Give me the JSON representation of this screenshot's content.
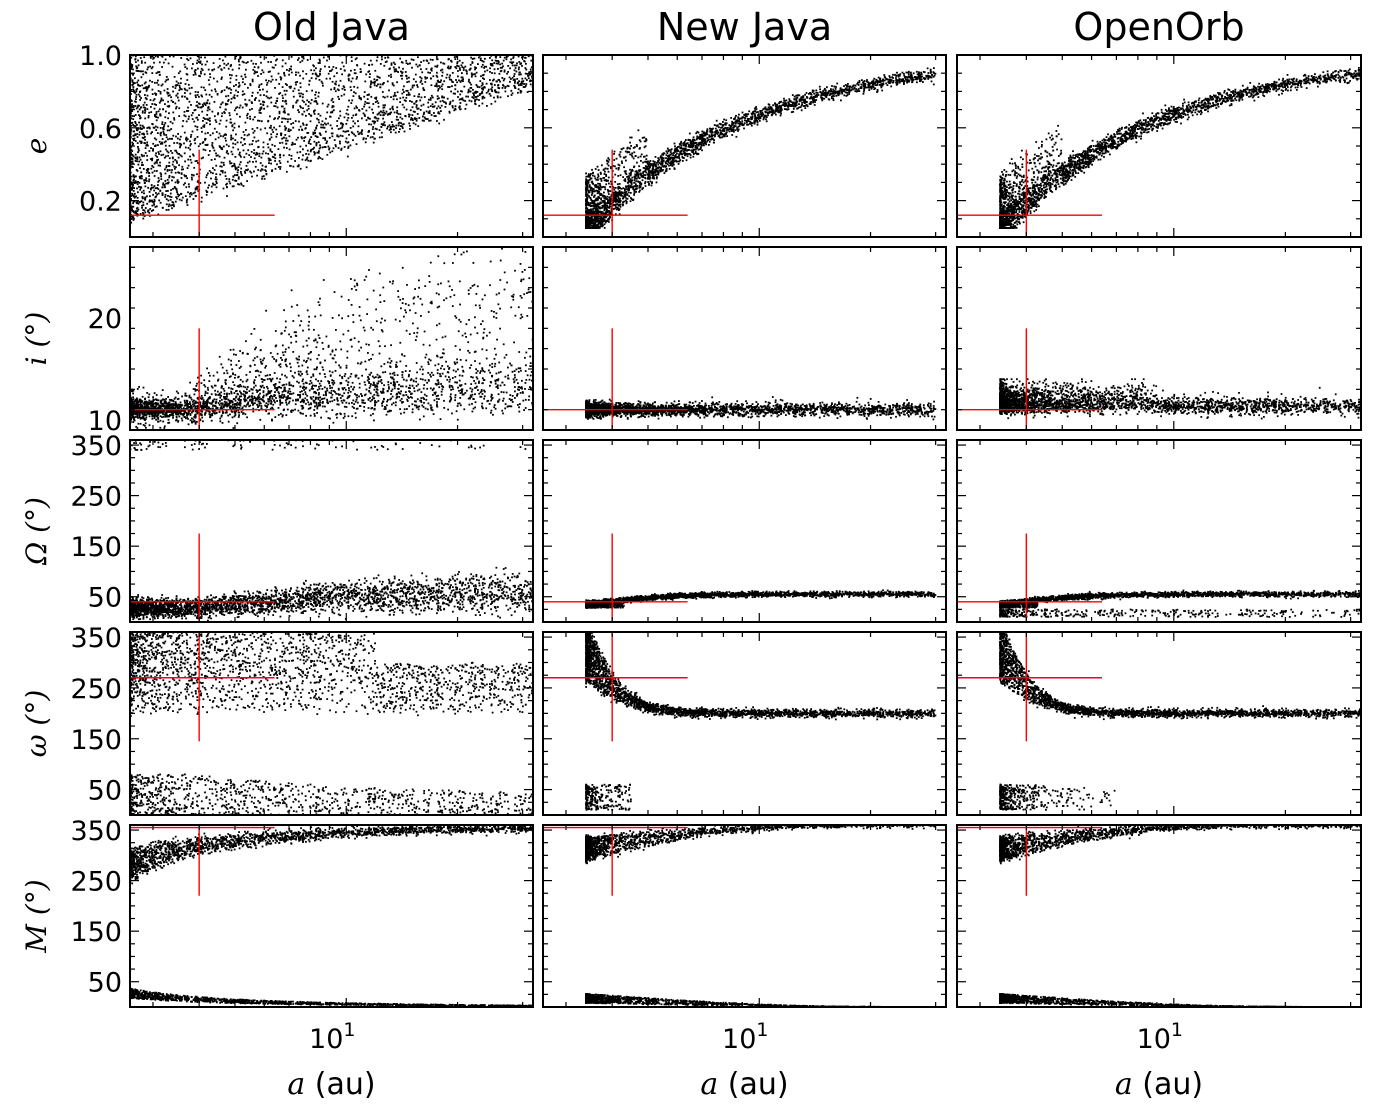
{
  "chart_data": {
    "type": "scatter",
    "layout": "5 rows x 3 columns grid; shared x axis per column, shared y axis per row",
    "columns": [
      "Old Java",
      "New Java",
      "OpenOrb"
    ],
    "x": {
      "label_symbol": "a",
      "label_unit": "(au)",
      "scale": "log",
      "tick_labels": [
        "10",
        "1"
      ],
      "range": [
        2.6,
        32
      ]
    },
    "rows": [
      {
        "key": "e",
        "label": "e",
        "unit": "",
        "range": [
          0,
          1.0
        ],
        "tick_labels": [
          "0.2",
          "0.6",
          "1.0"
        ],
        "tick_values": [
          0.2,
          0.6,
          1.0
        ]
      },
      {
        "key": "i",
        "label": "i",
        "unit": "(°)",
        "range": [
          9,
          27
        ],
        "tick_labels": [
          "10",
          "20"
        ],
        "tick_values": [
          10,
          20
        ]
      },
      {
        "key": "Omega",
        "label": "Ω",
        "unit": "(°)",
        "range": [
          0,
          360
        ],
        "tick_labels": [
          "50",
          "150",
          "250",
          "350"
        ],
        "tick_values": [
          50,
          150,
          250,
          350
        ]
      },
      {
        "key": "omega",
        "label": "ω",
        "unit": "(°)",
        "range": [
          0,
          360
        ],
        "tick_labels": [
          "50",
          "150",
          "250",
          "350"
        ],
        "tick_values": [
          50,
          150,
          250,
          350
        ]
      },
      {
        "key": "M",
        "label": "M",
        "unit": "(°)",
        "range": [
          0,
          360
        ],
        "tick_labels": [
          "50",
          "150",
          "250",
          "350"
        ],
        "tick_values": [
          50,
          150,
          250,
          350
        ]
      }
    ],
    "reference_point": {
      "color": "#ff0000",
      "description": "red cross marking the true orbit",
      "a": 4.0,
      "e": 0.12,
      "i": 11.0,
      "Omega": 40,
      "omega": 270,
      "M": 355,
      "a_span": [
        2.6,
        6.4
      ],
      "e_span": [
        0.0,
        0.48
      ],
      "i_span": [
        9,
        19
      ],
      "Omega_span": [
        0,
        175
      ],
      "omega_span": [
        145,
        360
      ],
      "M_span": [
        220,
        360
      ]
    },
    "series": [
      {
        "name": "Old Java",
        "color": "#000000",
        "a_range": [
          2.6,
          32
        ],
        "points_approx": 3000
      },
      {
        "name": "New Java",
        "color": "#000000",
        "a_range": [
          3.4,
          30
        ],
        "points_approx": 3000
      },
      {
        "name": "OpenOrb",
        "color": "#000000",
        "a_range": [
          3.4,
          32
        ],
        "points_approx": 3000
      }
    ],
    "grid": false,
    "legend": "none"
  }
}
